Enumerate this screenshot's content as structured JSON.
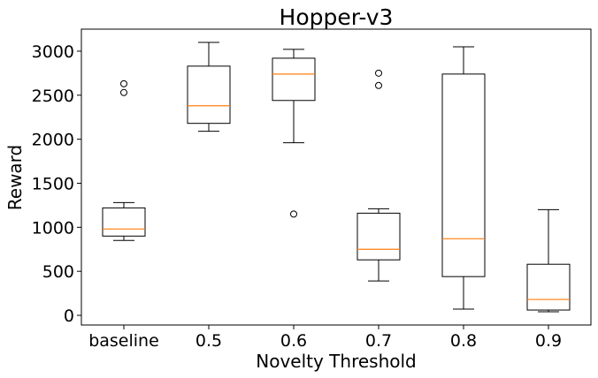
{
  "chart_data": {
    "type": "box",
    "title": "Hopper-v3",
    "xlabel": "Novelty Threshold",
    "ylabel": "Reward",
    "ylim": [
      -110,
      3250
    ],
    "yticks": [
      0,
      500,
      1000,
      1500,
      2000,
      2500,
      3000
    ],
    "ytick_labels": [
      "0",
      "500",
      "1000",
      "1500",
      "2000",
      "2500",
      "3000"
    ],
    "grid": false,
    "colors": {
      "box": "#000000",
      "median": "#ff7f0e",
      "outlier": "#000000"
    },
    "categories": [
      "baseline",
      "0.5",
      "0.6",
      "0.7",
      "0.8",
      "0.9"
    ],
    "boxes": [
      {
        "category": "baseline",
        "whisker_low": 850,
        "q1": 900,
        "median": 980,
        "q3": 1220,
        "whisker_high": 1280,
        "outliers": [
          2530,
          2630
        ]
      },
      {
        "category": "0.5",
        "whisker_low": 2090,
        "q1": 2180,
        "median": 2380,
        "q3": 2830,
        "whisker_high": 3100,
        "outliers": []
      },
      {
        "category": "0.6",
        "whisker_low": 1960,
        "q1": 2440,
        "median": 2740,
        "q3": 2920,
        "whisker_high": 3020,
        "outliers": [
          1150
        ]
      },
      {
        "category": "0.7",
        "whisker_low": 390,
        "q1": 630,
        "median": 750,
        "q3": 1160,
        "whisker_high": 1210,
        "outliers": [
          2610,
          2750
        ]
      },
      {
        "category": "0.8",
        "whisker_low": 70,
        "q1": 440,
        "median": 870,
        "q3": 2740,
        "whisker_high": 3050,
        "outliers": []
      },
      {
        "category": "0.9",
        "whisker_low": 40,
        "q1": 60,
        "median": 180,
        "q3": 580,
        "whisker_high": 1200,
        "outliers": []
      }
    ]
  }
}
